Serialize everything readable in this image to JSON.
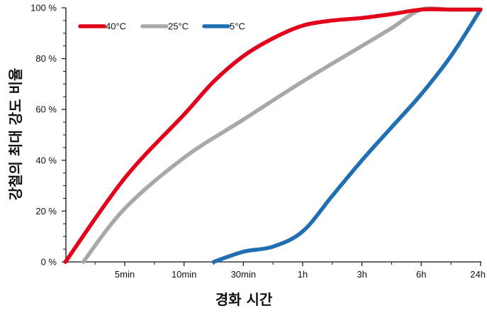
{
  "chart_data": {
    "type": "line",
    "title": "",
    "xlabel": "경화 시간",
    "ylabel": "강철의 최대 강도 비율",
    "x_categories": [
      "5min",
      "10min",
      "30min",
      "1h",
      "3h",
      "6h",
      "24h"
    ],
    "y_ticks": [
      "0 %",
      "20 %",
      "40 %",
      "60 %",
      "80 %",
      "100 %"
    ],
    "ylim": [
      0,
      100
    ],
    "grid": false,
    "legend_position": "top-left",
    "series": [
      {
        "name": "40°C",
        "color": "#e3001b",
        "x": [
          -1,
          0,
          1,
          1.5,
          2,
          2.5,
          3,
          3.5,
          4,
          4.5,
          5,
          5.5,
          6
        ],
        "values": [
          0,
          33,
          58,
          71,
          81,
          88,
          93,
          95,
          96,
          97.5,
          99.3,
          99.3,
          99.3
        ]
      },
      {
        "name": "25°C",
        "color": "#a8a8a8",
        "x": [
          -0.7,
          0,
          1,
          2,
          3,
          4,
          4.5,
          5,
          5.5,
          6
        ],
        "values": [
          0,
          21,
          41,
          56,
          71,
          85,
          92,
          99.3,
          99.3,
          99.3
        ]
      },
      {
        "name": "5°C",
        "color": "#1f6fb2",
        "x": [
          1.5,
          2,
          2.5,
          3,
          3.5,
          4,
          4.5,
          5,
          5.5,
          6
        ],
        "values": [
          0,
          4,
          6,
          12,
          26,
          40,
          53,
          66,
          81,
          99.3
        ]
      }
    ]
  }
}
